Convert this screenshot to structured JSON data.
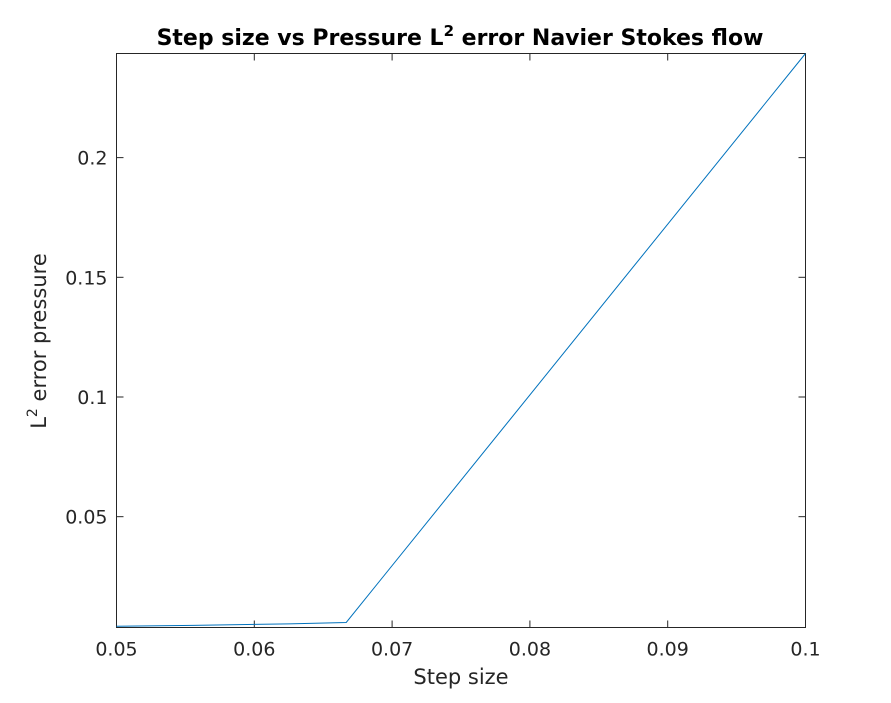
{
  "chart_data": {
    "type": "line",
    "title": {
      "main": "Step size vs Pressure L",
      "sup": "2",
      "rest": " error Navier Stokes flow"
    },
    "xlabel": "Step size",
    "ylabel": {
      "main": "L",
      "sup": "2",
      "rest": " error pressure"
    },
    "xlim": [
      0.05,
      0.1
    ],
    "ylim": [
      0.0037,
      0.2435
    ],
    "xticks": [
      0.05,
      0.06,
      0.07,
      0.08,
      0.09,
      0.1
    ],
    "xtick_labels": [
      "0.05",
      "0.06",
      "0.07",
      "0.08",
      "0.09",
      "0.1"
    ],
    "yticks": [
      0.05,
      0.1,
      0.15,
      0.2
    ],
    "ytick_labels": [
      "0.05",
      "0.1",
      "0.15",
      "0.2"
    ],
    "grid": false,
    "series": [
      {
        "color": "#0072bd",
        "x": [
          0.05,
          0.05556,
          0.0625,
          0.06667,
          0.1
        ],
        "y": [
          0.0042,
          0.0046,
          0.0052,
          0.0058,
          0.2435
        ]
      }
    ]
  }
}
